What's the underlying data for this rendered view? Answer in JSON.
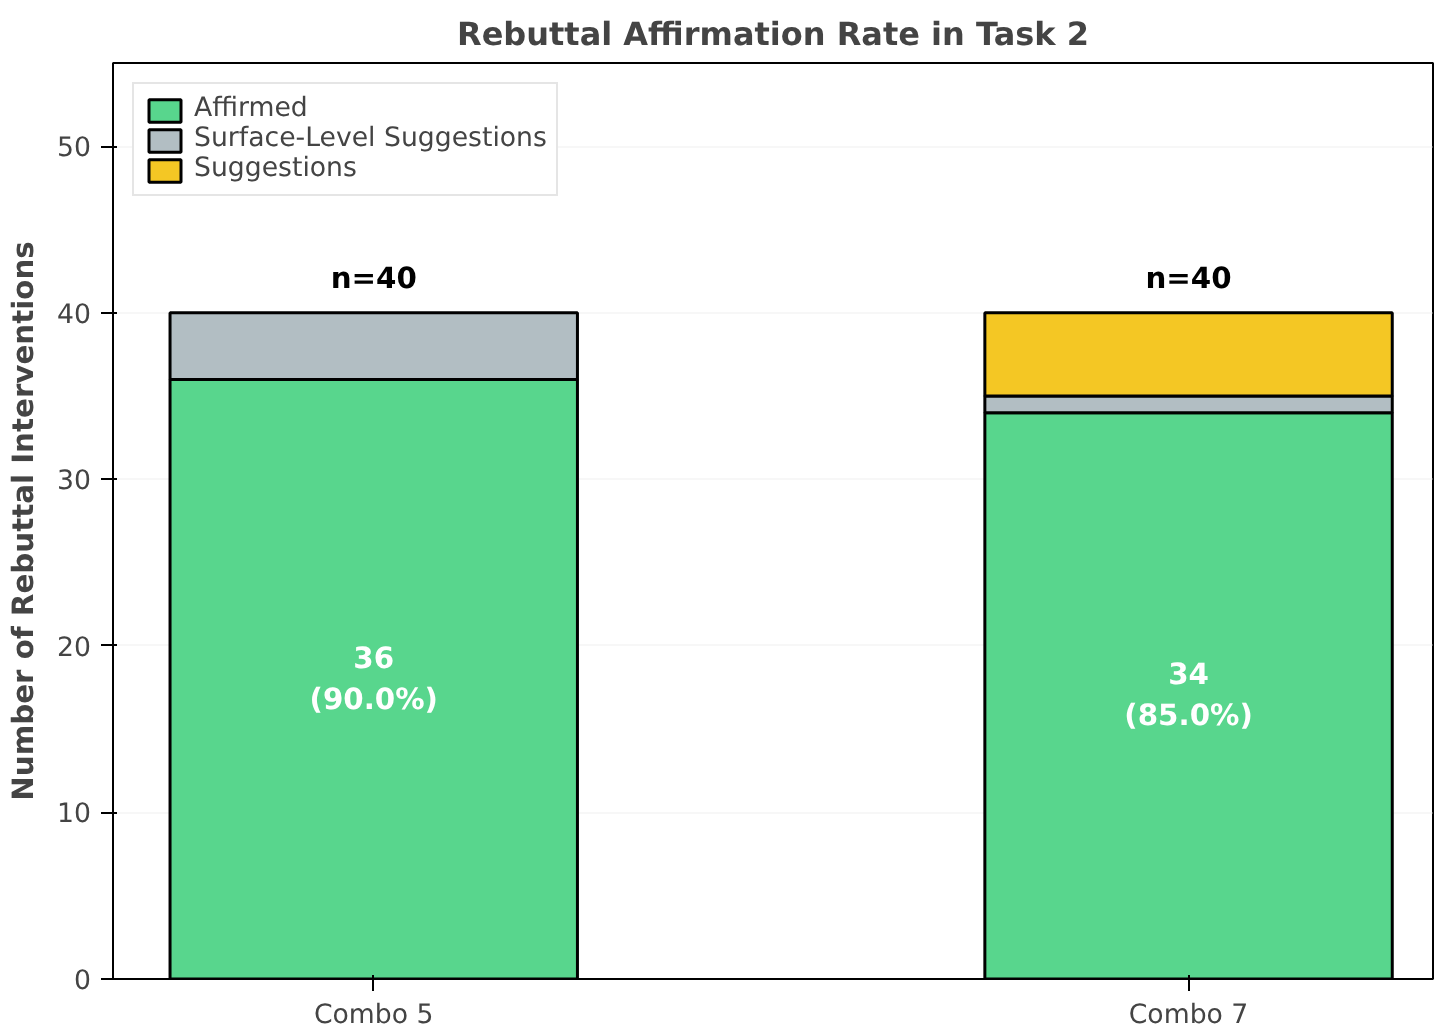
{
  "chart_data": {
    "type": "bar",
    "title": "Rebuttal Affirmation Rate in Task 2",
    "ylabel": "Number of Rebuttal Interventions",
    "categories": [
      "Combo 5",
      "Combo 7"
    ],
    "stacked": true,
    "series": [
      {
        "name": "Affirmed",
        "color": "#58d68d",
        "values": [
          36,
          34
        ],
        "value_labels": [
          "36\n(90.0%)",
          "34\n(85.0%)"
        ]
      },
      {
        "name": "Surface-Level Suggestions",
        "color": "#b2bec3",
        "values": [
          4,
          1
        ]
      },
      {
        "name": "Suggestions",
        "color": "#f4c724",
        "values": [
          null,
          5
        ]
      }
    ],
    "totals": [
      "n=40",
      "n=40"
    ],
    "ylim": [
      0,
      55
    ],
    "yticks": [
      0,
      10,
      20,
      30,
      40,
      50
    ],
    "grid": "y",
    "legend": "top left"
  }
}
